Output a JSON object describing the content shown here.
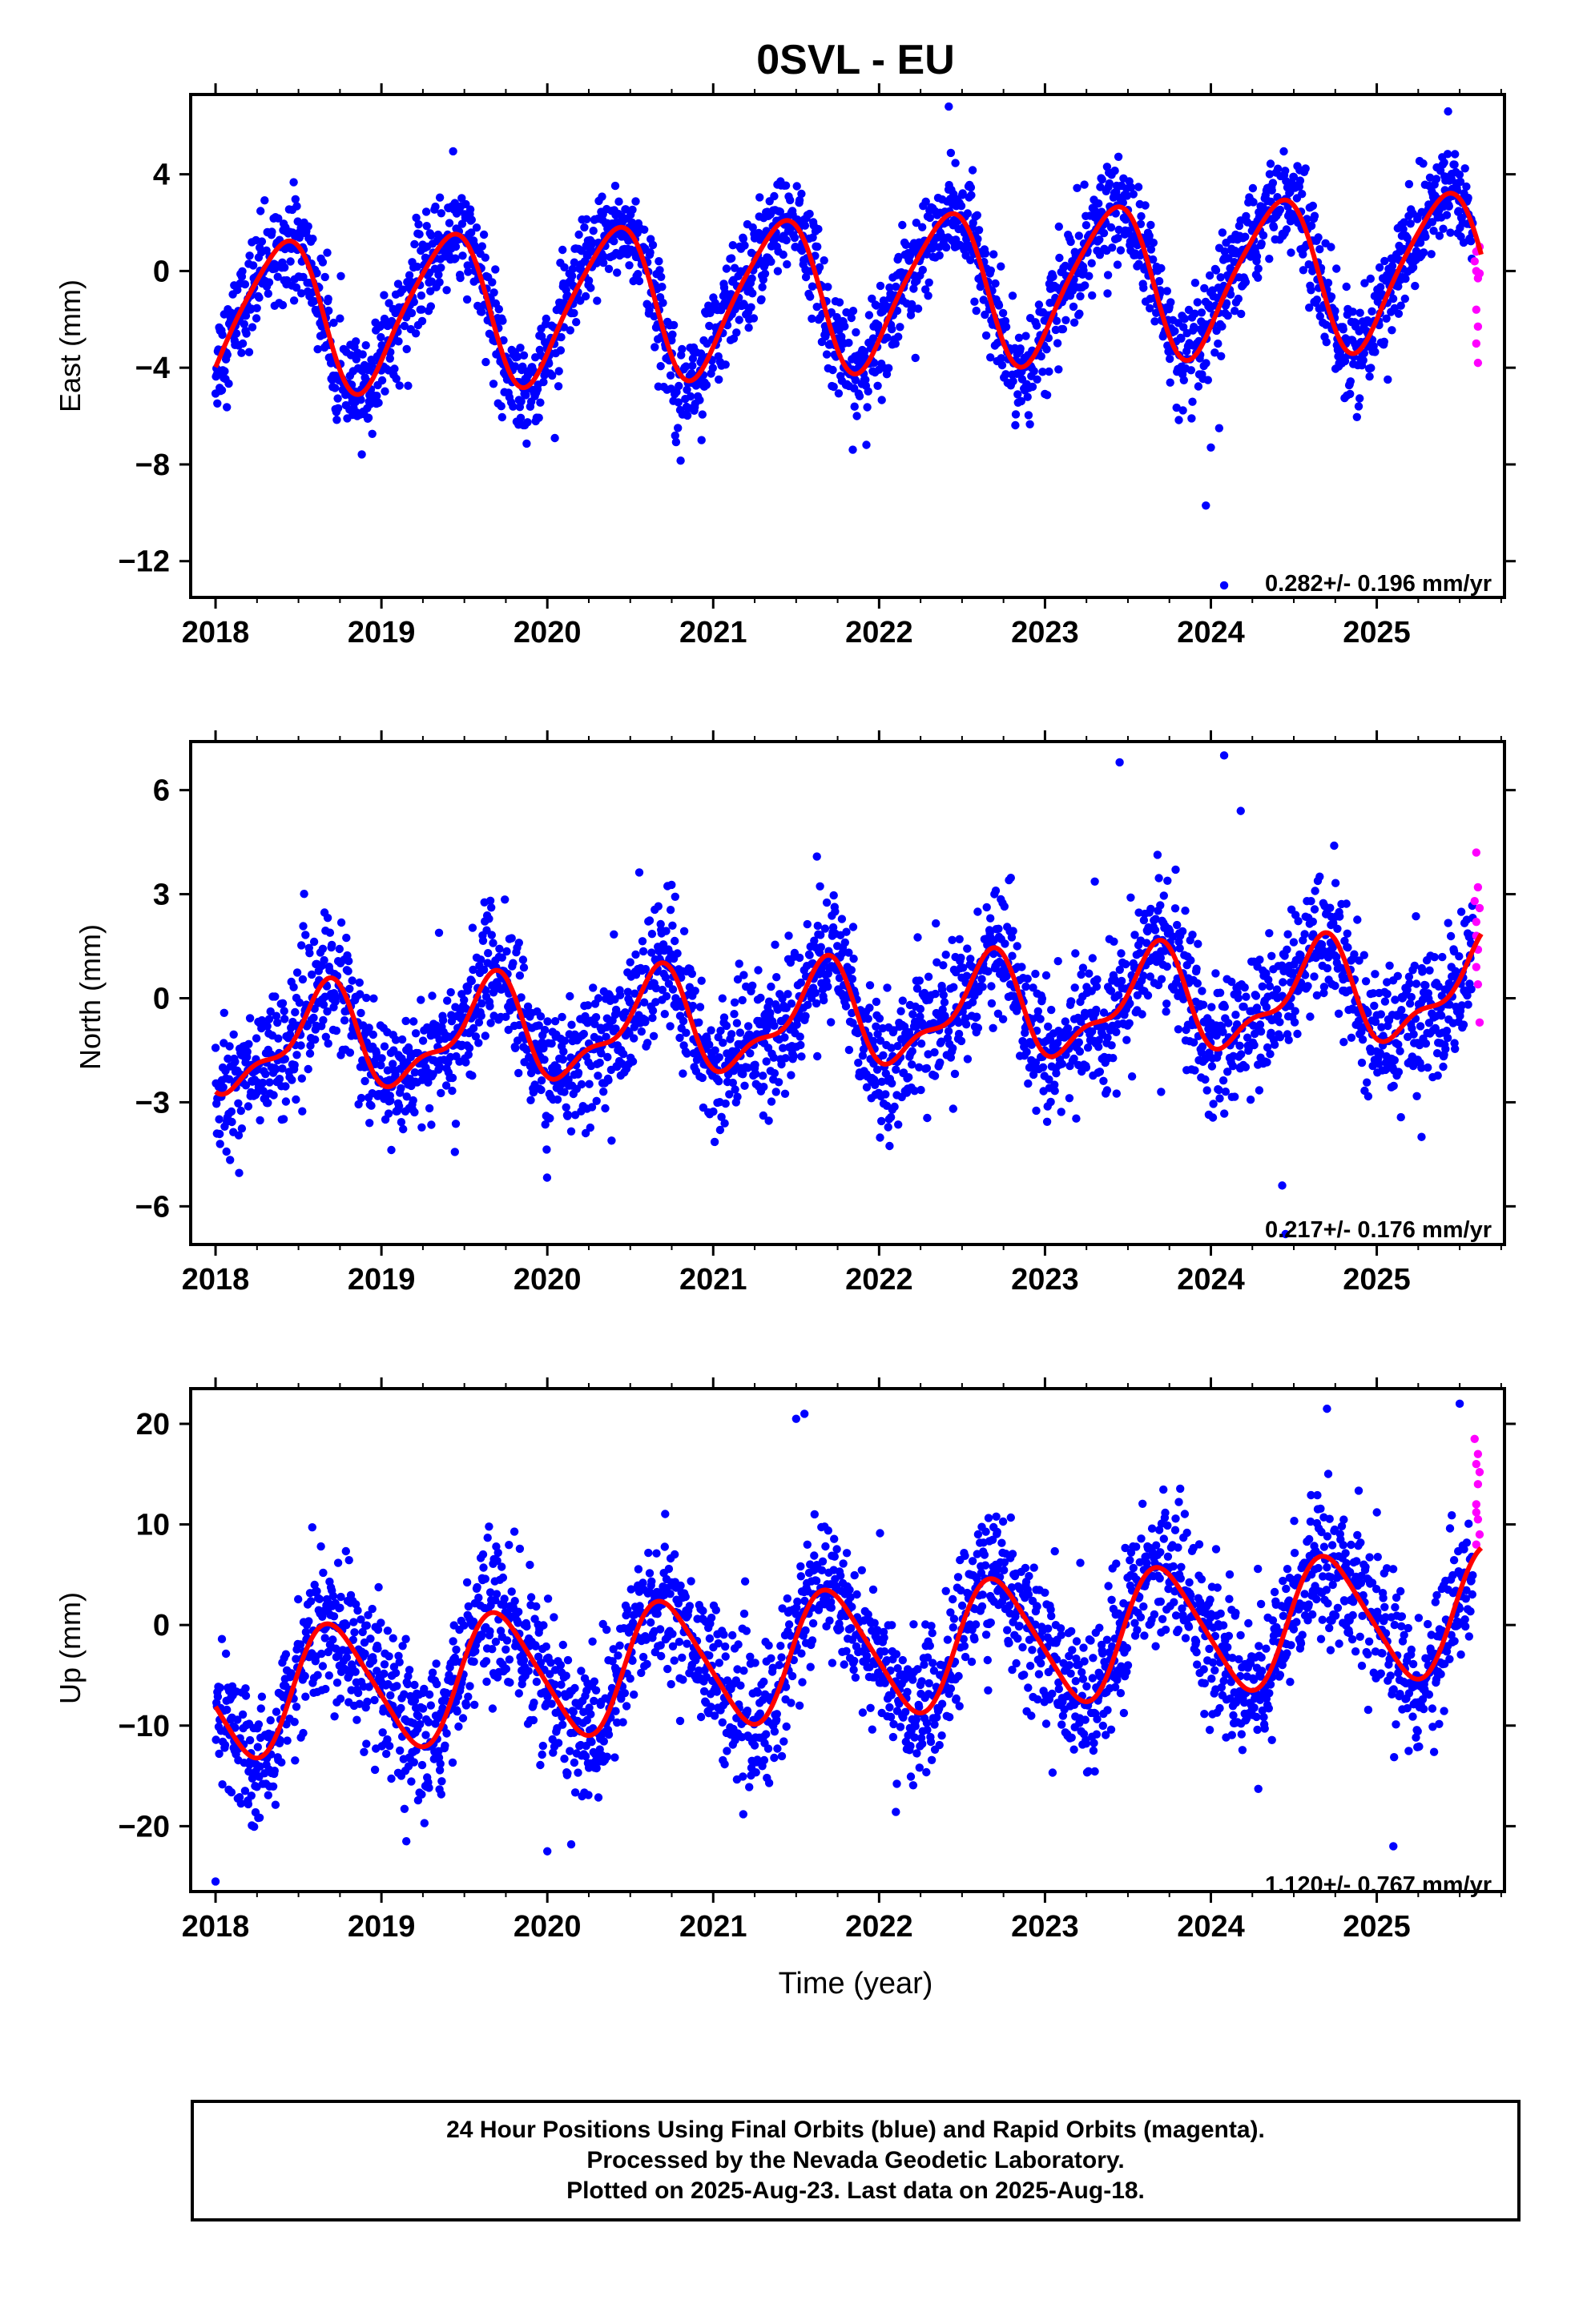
{
  "title": "0SVL - EU",
  "xlabel": "Time (year)",
  "caption": {
    "line1": "24 Hour Positions Using Final Orbits (blue) and Rapid Orbits (magenta).",
    "line2": "Processed by the Nevada Geodetic Laboratory.",
    "line3": "Plotted on 2025-Aug-23. Last data on 2025-Aug-18."
  },
  "colors": {
    "final": "#0000ff",
    "rapid": "#ff00ff",
    "model": "#ff0000",
    "axis": "#000000"
  },
  "chart_data": [
    {
      "type": "scatter",
      "component": "East",
      "ylabel": "East (mm)",
      "xlim": [
        2017.85,
        2025.77
      ],
      "ylim": [
        -13.5,
        7.3
      ],
      "xticks": [
        2018,
        2019,
        2020,
        2021,
        2022,
        2023,
        2024,
        2025
      ],
      "yticks": [
        -12,
        -8,
        -4,
        0,
        4
      ],
      "rate_label": "0.282+/- 0.196 mm/yr",
      "model": {
        "offset": -0.9,
        "rate": 0.282,
        "annual_amp": 3.1,
        "annual_phase": -0.9,
        "semi_amp": 0.5,
        "semi_phase": 1.0,
        "start": 2018.0,
        "end": 2025.63
      },
      "scatter_noise_sd": 1.05,
      "final_range": [
        2018.0,
        2025.58
      ],
      "rapid_points": [
        [
          2025.59,
          0.4
        ],
        [
          2025.6,
          0.0
        ],
        [
          2025.61,
          -0.3
        ],
        [
          2025.6,
          -1.6
        ],
        [
          2025.61,
          -2.3
        ],
        [
          2025.6,
          -3.0
        ],
        [
          2025.61,
          -3.8
        ],
        [
          2025.62,
          1.0
        ],
        [
          2025.62,
          -0.1
        ],
        [
          2025.6,
          0.8
        ]
      ],
      "outliers": [
        [
          2023.97,
          -9.7
        ],
        [
          2024.0,
          -7.3
        ],
        [
          2024.05,
          -6.5
        ],
        [
          2022.42,
          6.8
        ],
        [
          2025.43,
          6.6
        ],
        [
          2024.08,
          -13.0
        ]
      ]
    },
    {
      "type": "scatter",
      "component": "North",
      "ylabel": "North (mm)",
      "xlim": [
        2017.85,
        2025.77
      ],
      "ylim": [
        -7.1,
        7.4
      ],
      "xticks": [
        2018,
        2019,
        2020,
        2021,
        2022,
        2023,
        2024,
        2025
      ],
      "yticks": [
        -6,
        -3,
        0,
        3,
        6
      ],
      "rate_label": "0.217+/- 0.176 mm/yr",
      "model": {
        "offset": -0.55,
        "rate": 0.217,
        "annual_amp": 1.35,
        "annual_phase": -2.5,
        "semi_amp": 0.55,
        "semi_phase": -1.2,
        "start": 2018.0,
        "end": 2025.63
      },
      "scatter_noise_sd": 0.95,
      "final_range": [
        2018.0,
        2025.58
      ],
      "rapid_points": [
        [
          2025.59,
          2.8
        ],
        [
          2025.6,
          2.2
        ],
        [
          2025.61,
          1.4
        ],
        [
          2025.6,
          0.9
        ],
        [
          2025.61,
          0.4
        ],
        [
          2025.62,
          -0.7
        ],
        [
          2025.61,
          3.2
        ],
        [
          2025.6,
          4.2
        ],
        [
          2025.62,
          2.6
        ],
        [
          2025.6,
          1.8
        ]
      ],
      "outliers": [
        [
          2023.45,
          6.8
        ],
        [
          2024.08,
          7.0
        ],
        [
          2024.18,
          5.4
        ],
        [
          2024.43,
          -5.4
        ],
        [
          2024.45,
          -6.8
        ],
        [
          2025.27,
          -4.0
        ],
        [
          2023.7,
          -2.7
        ]
      ]
    },
    {
      "type": "scatter",
      "component": "Up",
      "ylabel": "Up (mm)",
      "xlim": [
        2017.85,
        2025.77
      ],
      "ylim": [
        -26.5,
        23.5
      ],
      "xticks": [
        2018,
        2019,
        2020,
        2021,
        2022,
        2023,
        2024,
        2025
      ],
      "yticks": [
        -20,
        -10,
        0,
        10,
        20
      ],
      "rate_label": "1.120+/- 0.767 mm/yr",
      "model": {
        "offset": -2.8,
        "rate": 1.12,
        "annual_amp": 6.2,
        "annual_phase": -2.9,
        "semi_amp": 0.9,
        "semi_phase": 0.5,
        "start": 2018.0,
        "end": 2025.63
      },
      "scatter_noise_sd": 3.6,
      "final_range": [
        2018.0,
        2025.58
      ],
      "rapid_points": [
        [
          2025.59,
          18.5
        ],
        [
          2025.6,
          16.0
        ],
        [
          2025.61,
          14.0
        ],
        [
          2025.6,
          12.0
        ],
        [
          2025.61,
          10.5
        ],
        [
          2025.62,
          9.0
        ],
        [
          2025.6,
          8.0
        ],
        [
          2025.61,
          17.0
        ],
        [
          2025.62,
          15.2
        ],
        [
          2025.6,
          11.2
        ]
      ],
      "outliers": [
        [
          2018.0,
          -25.5
        ],
        [
          2020.0,
          -22.5
        ],
        [
          2021.5,
          20.5
        ],
        [
          2021.55,
          21.0
        ],
        [
          2025.1,
          -22.0
        ],
        [
          2025.5,
          22.0
        ],
        [
          2024.7,
          21.5
        ],
        [
          2019.15,
          -21.5
        ]
      ]
    }
  ]
}
